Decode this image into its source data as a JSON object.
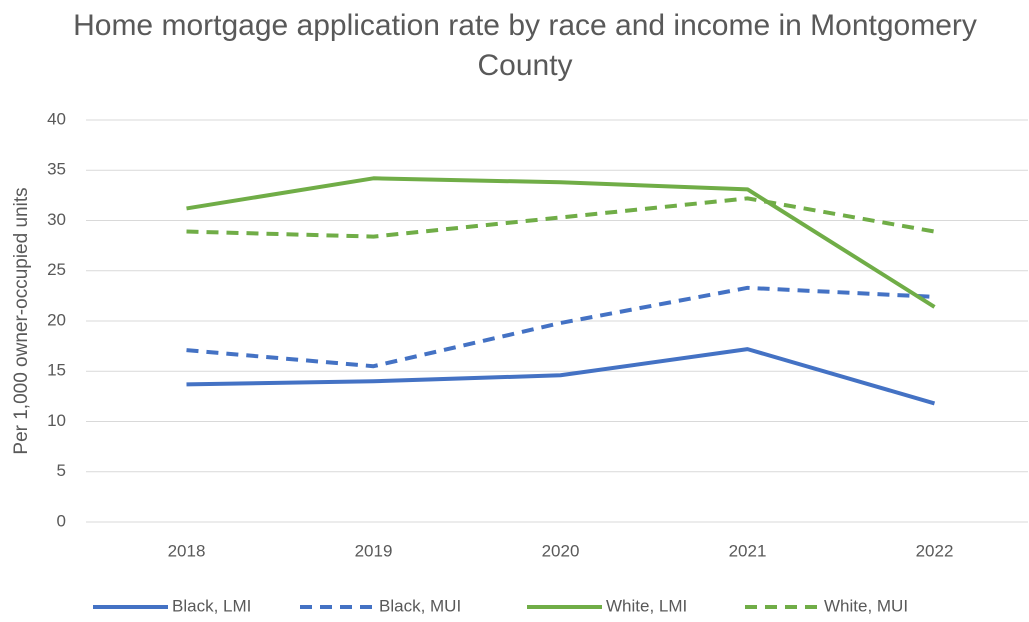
{
  "chart_data": {
    "type": "line",
    "title": "Home mortgage application rate by race and income in Montgomery County",
    "y_label": "Per 1,000 owner-occupied units",
    "categories": [
      "2018",
      "2019",
      "2020",
      "2021",
      "2022"
    ],
    "series": [
      {
        "name": "Black, LMI",
        "color": "#4472c4",
        "dashed": false,
        "values": [
          13.7,
          14.0,
          14.6,
          17.2,
          11.8
        ]
      },
      {
        "name": "Black, MUI",
        "color": "#4472c4",
        "dashed": true,
        "values": [
          17.1,
          15.5,
          19.8,
          23.3,
          22.4
        ]
      },
      {
        "name": "White, LMI",
        "color": "#70ad47",
        "dashed": false,
        "values": [
          31.2,
          34.2,
          33.8,
          33.1,
          21.4
        ]
      },
      {
        "name": "White, MUI",
        "color": "#70ad47",
        "dashed": true,
        "values": [
          28.9,
          28.4,
          30.3,
          32.2,
          28.9
        ]
      }
    ],
    "ylim": [
      0,
      40
    ],
    "yticks": [
      0,
      5,
      10,
      15,
      20,
      25,
      30,
      35,
      40
    ],
    "grid": true,
    "legend": "bottom"
  }
}
